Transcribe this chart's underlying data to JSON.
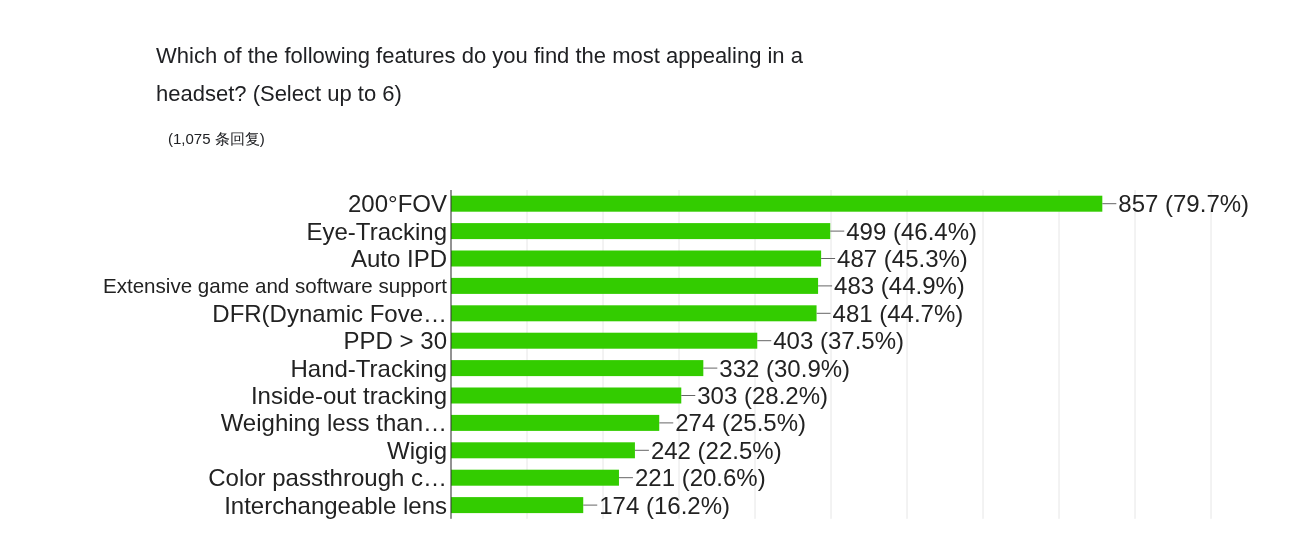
{
  "chart_data": {
    "type": "bar",
    "orientation": "horizontal",
    "title": "Which of the following features do you find the most appealing in a headset? (Select up to 6)",
    "subtitle": "(1,075 条回复)",
    "categories": [
      "200°FOV",
      "Eye-Tracking",
      "Auto IPD",
      "Extensive game and software support",
      "DFR(Dynamic Fove…",
      "PPD > 30",
      "Hand-Tracking",
      "Inside-out tracking",
      "Weighing less than…",
      "Wigig",
      "Color passthrough c…",
      "Interchangeable lens"
    ],
    "values": [
      857,
      499,
      487,
      483,
      481,
      403,
      332,
      303,
      274,
      242,
      221,
      174
    ],
    "value_labels": [
      "857 (79.7%)",
      "499 (46.4%)",
      "487 (45.3%)",
      "483 (44.9%)",
      "481 (44.7%)",
      "403 (37.5%)",
      "332 (30.9%)",
      "303 (28.2%)",
      "274 (25.5%)",
      "242 (22.5%)",
      "221 (20.6%)",
      "174 (16.2%)"
    ],
    "color": "#33cc00",
    "xlim": [
      0,
      1000
    ],
    "xticks": [
      {
        "value": 0,
        "label": null
      },
      {
        "value": 100,
        "label": null
      },
      {
        "value": 200,
        "label": null
      },
      {
        "value": 300,
        "label": null
      },
      {
        "value": 400,
        "label": null
      },
      {
        "value": 500,
        "label": null
      },
      {
        "value": 600,
        "label": null
      },
      {
        "value": 700,
        "label": null
      },
      {
        "value": 800,
        "label": null
      },
      {
        "value": 900,
        "label": null
      },
      {
        "value": 1000,
        "label": null
      }
    ],
    "grid": "x",
    "tick_labels": "y"
  }
}
